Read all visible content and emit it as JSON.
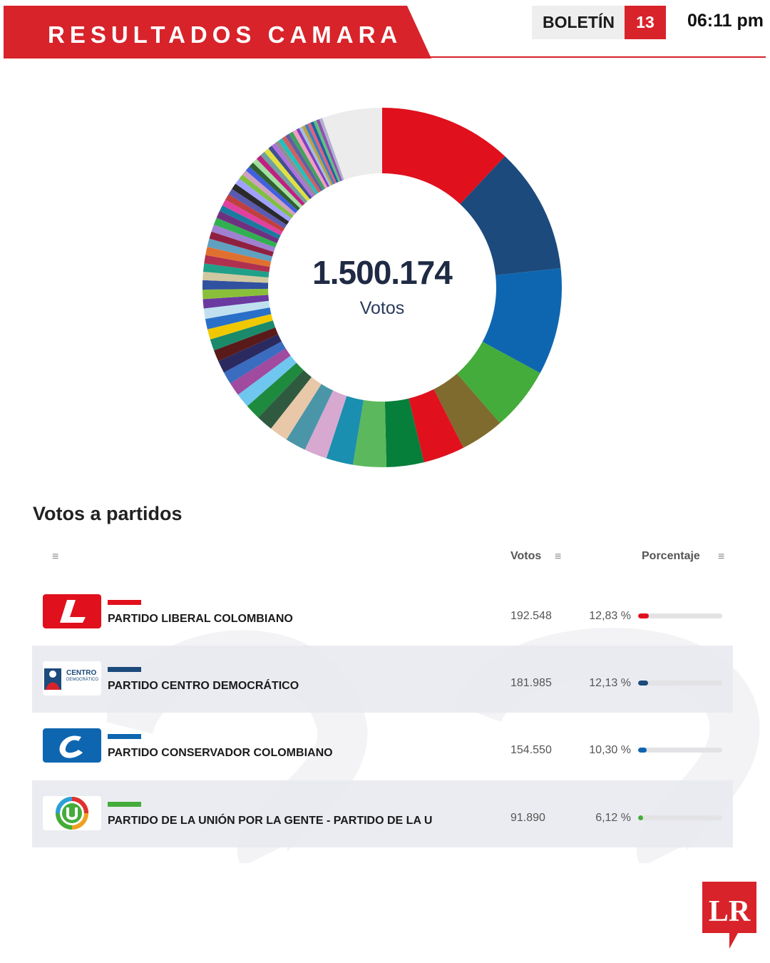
{
  "header": {
    "title": "RESULTADOS CAMARA",
    "bulletin_label": "BOLETÍN",
    "bulletin_number": "13",
    "time": "06:11 pm",
    "accent_color": "#d8232a"
  },
  "chart_data": {
    "type": "pie",
    "variant": "donut",
    "center_value": "1.500.174",
    "center_label": "Votos",
    "total_votes": 1500174,
    "top_slices": [
      {
        "name": "PARTIDO LIBERAL COLOMBIANO",
        "value": 12.83,
        "color": "#e0101d"
      },
      {
        "name": "PARTIDO CENTRO DEMOCRÁTICO",
        "value": 12.13,
        "color": "#1c4a7c"
      },
      {
        "name": "PARTIDO CONSERVADOR COLOMBIANO",
        "value": 10.3,
        "color": "#0f66b0"
      },
      {
        "name": "PARTIDO DE LA UNIÓN POR LA GENTE - PARTIDO DE LA U",
        "value": 6.12,
        "color": "#44ac3a"
      }
    ],
    "other_slices": [
      {
        "value": 4.2,
        "color": "#7f6b2e"
      },
      {
        "value": 4.0,
        "color": "#e0101d"
      },
      {
        "value": 3.6,
        "color": "#067f3a"
      },
      {
        "value": 3.2,
        "color": "#5cb85c"
      },
      {
        "value": 2.6,
        "color": "#1a8fb0"
      },
      {
        "value": 2.2,
        "color": "#d7a8d0"
      },
      {
        "value": 2.0,
        "color": "#4a96a8"
      },
      {
        "value": 1.8,
        "color": "#e8c8a8"
      },
      {
        "value": 1.6,
        "color": "#2f5a40"
      },
      {
        "value": 1.5,
        "color": "#1e8a3e"
      },
      {
        "value": 1.4,
        "color": "#6fc6ee"
      },
      {
        "value": 1.3,
        "color": "#a04aa0"
      },
      {
        "value": 1.2,
        "color": "#3a6cc0"
      },
      {
        "value": 1.2,
        "color": "#2a2a60"
      },
      {
        "value": 1.1,
        "color": "#5a1a1a"
      },
      {
        "value": 1.1,
        "color": "#1a8a6a"
      },
      {
        "value": 1.0,
        "color": "#f0c800"
      },
      {
        "value": 1.0,
        "color": "#2a70c8"
      },
      {
        "value": 1.0,
        "color": "#c0e0f0"
      },
      {
        "value": 0.9,
        "color": "#6a3aa0"
      },
      {
        "value": 0.9,
        "color": "#8abf3a"
      },
      {
        "value": 0.9,
        "color": "#3050a0"
      },
      {
        "value": 0.8,
        "color": "#d0c8a0"
      },
      {
        "value": 0.8,
        "color": "#20a088"
      },
      {
        "value": 0.8,
        "color": "#b03050"
      },
      {
        "value": 0.8,
        "color": "#e07030"
      },
      {
        "value": 0.8,
        "color": "#60a0c0"
      },
      {
        "value": 0.7,
        "color": "#902040"
      },
      {
        "value": 0.7,
        "color": "#a080d0"
      },
      {
        "value": 0.7,
        "color": "#30b050"
      },
      {
        "value": 0.7,
        "color": "#703080"
      },
      {
        "value": 0.6,
        "color": "#1a7aa0"
      },
      {
        "value": 0.6,
        "color": "#e040a0"
      },
      {
        "value": 0.6,
        "color": "#c04040"
      },
      {
        "value": 0.6,
        "color": "#5a5ab0"
      },
      {
        "value": 0.6,
        "color": "#2a2a2a"
      },
      {
        "value": 0.6,
        "color": "#a0a0ff"
      },
      {
        "value": 0.5,
        "color": "#80c040"
      },
      {
        "value": 0.5,
        "color": "#d0a0c0"
      },
      {
        "value": 0.5,
        "color": "#4060e0"
      },
      {
        "value": 0.5,
        "color": "#306030"
      },
      {
        "value": 0.5,
        "color": "#a0e0a0"
      },
      {
        "value": 0.5,
        "color": "#c02080"
      },
      {
        "value": 0.5,
        "color": "#70a0a0"
      },
      {
        "value": 0.5,
        "color": "#e0e040"
      },
      {
        "value": 0.4,
        "color": "#405090"
      },
      {
        "value": 0.4,
        "color": "#b070e0"
      },
      {
        "value": 0.4,
        "color": "#909090"
      },
      {
        "value": 0.4,
        "color": "#20c0c0"
      },
      {
        "value": 0.4,
        "color": "#d06060"
      },
      {
        "value": 0.4,
        "color": "#6060a0"
      },
      {
        "value": 0.4,
        "color": "#40a060"
      },
      {
        "value": 0.4,
        "color": "#f0a0c0"
      },
      {
        "value": 0.3,
        "color": "#8040c0"
      },
      {
        "value": 0.3,
        "color": "#a0c0e0"
      },
      {
        "value": 0.3,
        "color": "#c0a040"
      },
      {
        "value": 0.3,
        "color": "#4080c0"
      },
      {
        "value": 0.3,
        "color": "#e06080"
      },
      {
        "value": 0.3,
        "color": "#2060a0"
      },
      {
        "value": 0.3,
        "color": "#60c080"
      },
      {
        "value": 0.3,
        "color": "#9050b0"
      },
      {
        "value": 0.3,
        "color": "#b0b0d0"
      },
      {
        "value": 5.8,
        "color": "#ececec"
      }
    ]
  },
  "table": {
    "title": "Votos a partidos",
    "header_votes": "Votos",
    "header_percent": "Porcentaje",
    "menu_glyph": "≡",
    "rows": [
      {
        "party": "PARTIDO LIBERAL COLOMBIANO",
        "votes": "192.548",
        "percent": "12,83 %",
        "percent_value": 12.83,
        "color": "#e0101d",
        "logo_icon": "liberal-logo"
      },
      {
        "party": "PARTIDO CENTRO DEMOCRÁTICO",
        "votes": "181.985",
        "percent": "12,13 %",
        "percent_value": 12.13,
        "color": "#1c4a7c",
        "logo_icon": "centro-democratico-logo",
        "logo_text": "CENTRO",
        "logo_subtext": "DEMOCRÁTICO"
      },
      {
        "party": "PARTIDO CONSERVADOR COLOMBIANO",
        "votes": "154.550",
        "percent": "10,30 %",
        "percent_value": 10.3,
        "color": "#0f66b0",
        "logo_icon": "conservador-logo"
      },
      {
        "party": "PARTIDO DE LA UNIÓN POR LA GENTE - PARTIDO DE LA U",
        "votes": "91.890",
        "percent": "6,12 %",
        "percent_value": 6.12,
        "color": "#44ac3a",
        "logo_icon": "partido-de-la-u-logo"
      }
    ]
  },
  "brand": {
    "logo_text": "LR"
  }
}
